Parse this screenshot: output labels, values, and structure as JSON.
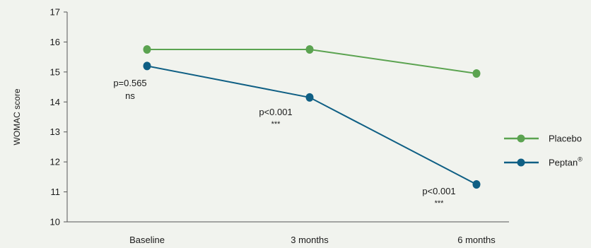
{
  "colors": {
    "background": "#f1f3ee",
    "placebo": "#5ba350",
    "peptan": "#0f5f84",
    "axis": "#555555",
    "text": "#1a1a1a"
  },
  "chart_data": {
    "type": "line",
    "categories": [
      "Baseline",
      "3 months",
      "6 months"
    ],
    "ylabel": "WOMAC score",
    "ylim": [
      10,
      17
    ],
    "yticks": [
      "10",
      "11",
      "12",
      "13",
      "14",
      "15",
      "16",
      "17"
    ],
    "grid": false,
    "legend_position": "right",
    "series": [
      {
        "name": "Placebo",
        "color": "#5ba350",
        "values": [
          15.75,
          15.75,
          14.95
        ]
      },
      {
        "name": "Peptan",
        "name_superscript": "®",
        "color": "#0f5f84",
        "values": [
          15.2,
          14.15,
          11.25
        ]
      }
    ],
    "annotations": [
      {
        "category": "Baseline",
        "p_text": "p=0.565",
        "sig_text": "ns"
      },
      {
        "category": "3 months",
        "p_text": "p<0.001",
        "sig_text": "***"
      },
      {
        "category": "6 months",
        "p_text": "p<0.001",
        "sig_text": "***"
      }
    ]
  }
}
